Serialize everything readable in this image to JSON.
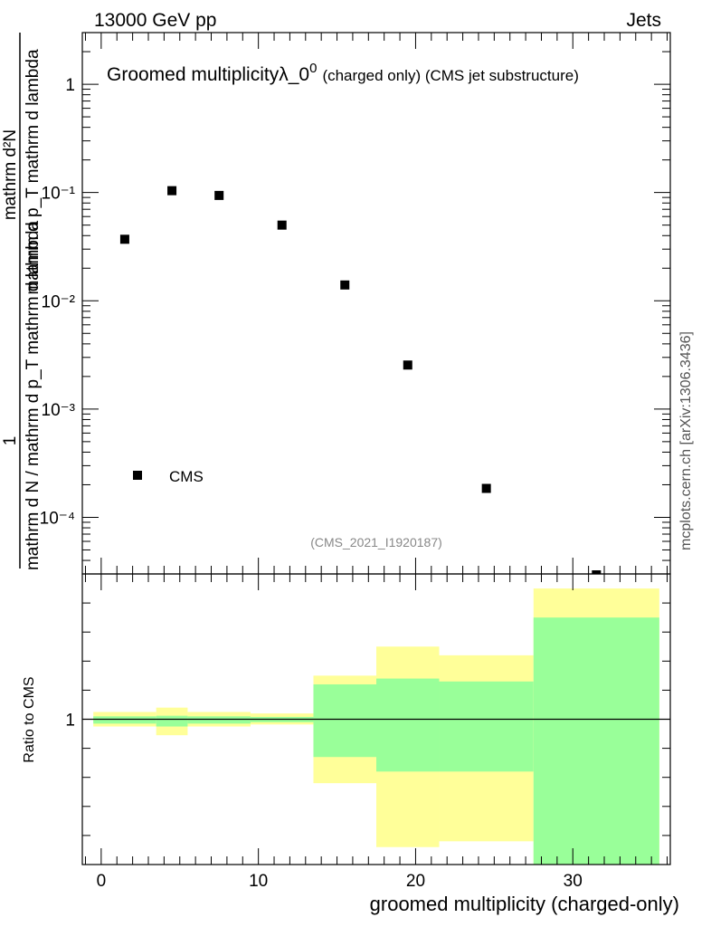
{
  "header": {
    "energy_label": "13000 GeV pp",
    "process_label": "Jets",
    "side_label": "mcplots.cern.ch [arXiv:1306.3436]"
  },
  "chart_data": [
    {
      "type": "scatter",
      "title": "Groomed multiplicityλ_0",
      "title_superscript": "0",
      "title_suffix": "(charged only) (CMS jet substructure)",
      "analysis_label": "(CMS_2021_I1920187)",
      "xlabel": "",
      "ylabel_lines": [
        "1",
        "mathrm d N / mathrm d p_T mathrm d lambda",
        "mathrm d²N",
        "mathrm d p_T mathrm d lambda"
      ],
      "yscale": "log",
      "ylim": [
        3e-05,
        3.0
      ],
      "y_tick_labels": [
        "10⁻⁴",
        "10⁻³",
        "10⁻²",
        "10⁻¹",
        "1"
      ],
      "y_tick_values": [
        0.0001,
        0.001,
        0.01,
        0.1,
        1
      ],
      "xlim": [
        -1.2,
        36.2
      ],
      "legend": {
        "entries": [
          "CMS"
        ],
        "position": "lower-left"
      },
      "series": [
        {
          "name": "CMS",
          "x": [
            1.5,
            4.5,
            7.5,
            11.5,
            15.5,
            19.5,
            24.5,
            31.5
          ],
          "y": [
            0.037,
            0.104,
            0.094,
            0.05,
            0.014,
            0.00255,
            0.000185,
            2.8e-05
          ]
        }
      ]
    },
    {
      "type": "area",
      "ylabel": "Ratio to CMS",
      "xlabel": "groomed multiplicity (charged-only)",
      "xlim": [
        -1.2,
        36.2
      ],
      "x_tick_labels": [
        "0",
        "10",
        "20",
        "30"
      ],
      "x_tick_values": [
        0,
        10,
        20,
        30
      ],
      "y_tick_labels": [
        "1"
      ],
      "y_tick_values": [
        1
      ],
      "ylim": [
        0.5,
        1.5
      ],
      "bands": {
        "edges": [
          -0.5,
          3.5,
          5.5,
          9.5,
          13.5,
          17.5,
          21.5,
          27.5,
          35.5
        ],
        "inner_low": [
          0.985,
          0.975,
          0.985,
          0.99,
          0.87,
          0.82,
          0.82,
          0.5
        ],
        "inner_high": [
          1.01,
          1.012,
          1.01,
          1.008,
          1.12,
          1.14,
          1.13,
          1.35
        ],
        "outer_low": [
          0.975,
          0.945,
          0.975,
          0.982,
          0.78,
          0.56,
          0.58,
          0.5
        ],
        "outer_high": [
          1.025,
          1.04,
          1.025,
          1.02,
          1.15,
          1.25,
          1.22,
          1.45
        ],
        "colors": {
          "inner": "#99ff99",
          "outer": "#ffff99"
        }
      }
    }
  ]
}
